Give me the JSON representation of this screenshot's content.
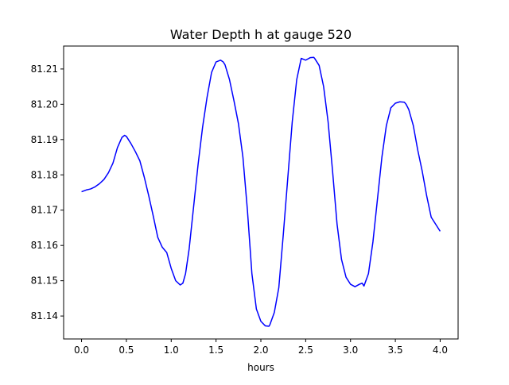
{
  "chart_data": {
    "type": "line",
    "title": "Water Depth h at gauge 520",
    "xlabel": "hours",
    "ylabel": "",
    "xlim": [
      -0.2,
      4.2
    ],
    "ylim": [
      81.1335,
      81.2165
    ],
    "xticks": [
      0.0,
      0.5,
      1.0,
      1.5,
      2.0,
      2.5,
      3.0,
      3.5,
      4.0
    ],
    "xtick_labels": [
      "0.0",
      "0.5",
      "1.0",
      "1.5",
      "2.0",
      "2.5",
      "3.0",
      "3.5",
      "4.0"
    ],
    "yticks": [
      81.14,
      81.15,
      81.16,
      81.17,
      81.18,
      81.19,
      81.2,
      81.21
    ],
    "ytick_labels": [
      "81.14",
      "81.15",
      "81.16",
      "81.17",
      "81.18",
      "81.19",
      "81.20",
      "81.21"
    ],
    "grid": false,
    "color": "#0000ff",
    "series": [
      {
        "name": "",
        "x": [
          0.0,
          0.05,
          0.1,
          0.15,
          0.2,
          0.25,
          0.3,
          0.35,
          0.4,
          0.45,
          0.48,
          0.5,
          0.55,
          0.6,
          0.65,
          0.7,
          0.75,
          0.8,
          0.85,
          0.9,
          0.95,
          1.0,
          1.05,
          1.1,
          1.13,
          1.16,
          1.2,
          1.25,
          1.3,
          1.35,
          1.4,
          1.45,
          1.5,
          1.55,
          1.58,
          1.6,
          1.65,
          1.7,
          1.75,
          1.8,
          1.85,
          1.9,
          1.95,
          2.0,
          2.05,
          2.09,
          2.1,
          2.15,
          2.2,
          2.25,
          2.3,
          2.35,
          2.4,
          2.45,
          2.5,
          2.55,
          2.59,
          2.6,
          2.65,
          2.7,
          2.75,
          2.8,
          2.85,
          2.9,
          2.95,
          3.0,
          3.05,
          3.1,
          3.13,
          3.15,
          3.2,
          3.25,
          3.3,
          3.35,
          3.4,
          3.45,
          3.5,
          3.55,
          3.6,
          3.62,
          3.65,
          3.7,
          3.75,
          3.8,
          3.85,
          3.9,
          3.95,
          4.0
        ],
        "values": [
          81.1752,
          81.1757,
          81.176,
          81.1766,
          81.1775,
          81.1787,
          81.1806,
          81.1833,
          81.1877,
          81.1906,
          81.1912,
          81.1909,
          81.1889,
          81.1866,
          81.184,
          81.1793,
          81.174,
          81.1683,
          81.1623,
          81.1595,
          81.158,
          81.1535,
          81.15,
          81.1488,
          81.1493,
          81.152,
          81.159,
          81.171,
          81.183,
          81.1935,
          81.202,
          81.209,
          81.212,
          81.2125,
          81.212,
          81.2112,
          81.207,
          81.201,
          81.1945,
          81.185,
          81.17,
          81.152,
          81.142,
          81.1385,
          81.1372,
          81.1371,
          81.1375,
          81.141,
          81.148,
          81.163,
          81.179,
          81.195,
          81.207,
          81.213,
          81.2125,
          81.2132,
          81.2133,
          81.213,
          81.211,
          81.205,
          81.195,
          81.181,
          81.166,
          81.156,
          81.151,
          81.149,
          81.1483,
          81.149,
          81.1493,
          81.1485,
          81.152,
          81.161,
          81.173,
          81.185,
          81.194,
          81.199,
          81.2003,
          81.2007,
          81.2006,
          81.2,
          81.1985,
          81.194,
          81.187,
          81.181,
          81.174,
          81.168,
          81.166,
          81.164
        ]
      }
    ]
  }
}
